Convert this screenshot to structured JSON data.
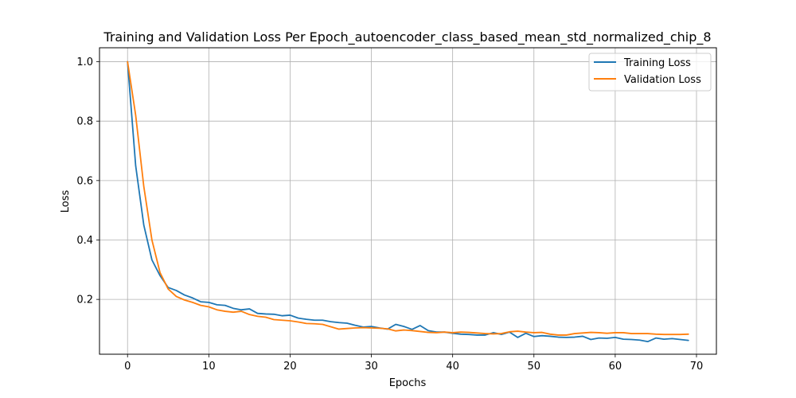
{
  "chart_data": {
    "type": "line",
    "title": "Training and Validation Loss Per Epoch_autoencoder_class_based_mean_std_normalized_chip_8",
    "xlabel": "Epochs",
    "ylabel": "Loss",
    "xlim": [
      -3.45,
      72.45
    ],
    "ylim": [
      0.0155,
      1.047
    ],
    "xticks": [
      0,
      10,
      20,
      30,
      40,
      50,
      60,
      70
    ],
    "xtick_labels": [
      "0",
      "10",
      "20",
      "30",
      "40",
      "50",
      "60",
      "70"
    ],
    "yticks": [
      0.2,
      0.4,
      0.6,
      0.8,
      1.0
    ],
    "ytick_labels": [
      "0.2",
      "0.4",
      "0.6",
      "0.8",
      "1.0"
    ],
    "grid": true,
    "legend_position": "top-right",
    "x": [
      0,
      1,
      2,
      3,
      4,
      5,
      6,
      7,
      8,
      9,
      10,
      11,
      12,
      13,
      14,
      15,
      16,
      17,
      18,
      19,
      20,
      21,
      22,
      23,
      24,
      25,
      26,
      27,
      28,
      29,
      30,
      31,
      32,
      33,
      34,
      35,
      36,
      37,
      38,
      39,
      40,
      41,
      42,
      43,
      44,
      45,
      46,
      47,
      48,
      49,
      50,
      51,
      52,
      53,
      54,
      55,
      56,
      57,
      58,
      59,
      60,
      61,
      62,
      63,
      64,
      65,
      66,
      67,
      68,
      69
    ],
    "series": [
      {
        "name": "Training Loss",
        "color": "#1f77b4",
        "values": [
          1.0,
          0.65,
          0.45,
          0.333,
          0.28,
          0.24,
          0.23,
          0.215,
          0.205,
          0.192,
          0.19,
          0.182,
          0.18,
          0.17,
          0.165,
          0.168,
          0.153,
          0.151,
          0.15,
          0.145,
          0.147,
          0.137,
          0.133,
          0.13,
          0.13,
          0.125,
          0.122,
          0.12,
          0.113,
          0.107,
          0.109,
          0.104,
          0.1,
          0.116,
          0.109,
          0.099,
          0.112,
          0.095,
          0.09,
          0.09,
          0.086,
          0.083,
          0.082,
          0.08,
          0.08,
          0.088,
          0.082,
          0.09,
          0.072,
          0.086,
          0.075,
          0.078,
          0.076,
          0.073,
          0.072,
          0.073,
          0.076,
          0.065,
          0.07,
          0.069,
          0.072,
          0.066,
          0.065,
          0.063,
          0.058,
          0.07,
          0.066,
          0.068,
          0.065,
          0.062
        ]
      },
      {
        "name": "Validation Loss",
        "color": "#ff7f0e",
        "values": [
          1.0,
          0.82,
          0.58,
          0.4,
          0.29,
          0.235,
          0.21,
          0.198,
          0.19,
          0.18,
          0.175,
          0.165,
          0.16,
          0.157,
          0.16,
          0.149,
          0.143,
          0.14,
          0.132,
          0.13,
          0.128,
          0.124,
          0.119,
          0.118,
          0.116,
          0.108,
          0.1,
          0.102,
          0.104,
          0.105,
          0.104,
          0.103,
          0.101,
          0.094,
          0.097,
          0.095,
          0.092,
          0.089,
          0.088,
          0.09,
          0.088,
          0.09,
          0.089,
          0.087,
          0.085,
          0.084,
          0.085,
          0.091,
          0.093,
          0.09,
          0.088,
          0.089,
          0.083,
          0.08,
          0.08,
          0.085,
          0.087,
          0.089,
          0.088,
          0.086,
          0.088,
          0.088,
          0.085,
          0.085,
          0.085,
          0.083,
          0.082,
          0.082,
          0.082,
          0.083
        ]
      }
    ]
  }
}
